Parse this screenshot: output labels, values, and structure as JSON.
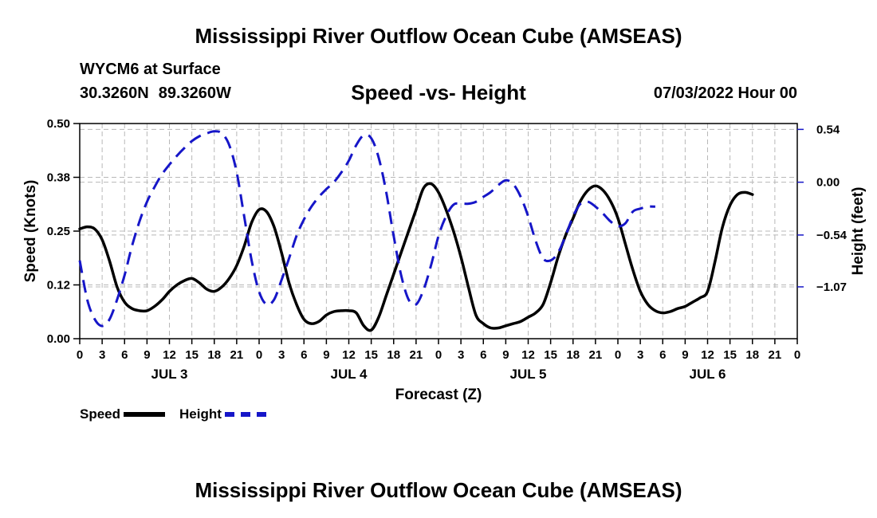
{
  "page": {
    "title_top": "Mississippi River Outflow Ocean Cube (AMSEAS)",
    "title_bottom": "Mississippi River Outflow Ocean Cube (AMSEAS)",
    "station": "WYCM6 at Surface",
    "lat": "30.3260N",
    "lon": "89.3260W",
    "subtitle": "Speed -vs- Height",
    "datetime": "07/03/2022 Hour 00"
  },
  "legend": {
    "speed_label": "Speed",
    "height_label": "Height"
  },
  "chart_data": {
    "type": "line",
    "title": "Speed -vs- Height",
    "xlabel": "Forecast (Z)",
    "ylabel_left": "Speed (Knots)",
    "ylabel_right": "Height (feet)",
    "x_range": [
      0,
      96
    ],
    "x_unit": "hours from 07/03/2022 00Z",
    "x_tick_labels": [
      "0",
      "3",
      "6",
      "9",
      "12",
      "15",
      "18",
      "21",
      "0",
      "3",
      "6",
      "9",
      "12",
      "15",
      "18",
      "21",
      "0",
      "3",
      "6",
      "9",
      "12",
      "15",
      "18",
      "21",
      "0",
      "3",
      "6",
      "9",
      "12",
      "15",
      "18",
      "21",
      "0"
    ],
    "day_labels": [
      {
        "label": "JUL 3",
        "hour": 12
      },
      {
        "label": "JUL 4",
        "hour": 36
      },
      {
        "label": "JUL 5",
        "hour": 60
      },
      {
        "label": "JUL 6",
        "hour": 84
      }
    ],
    "ylim_left": [
      0,
      0.5
    ],
    "yticks_left": [
      {
        "value": 0.0,
        "label": "0.00"
      },
      {
        "value": 0.125,
        "label": "0.12"
      },
      {
        "value": 0.25,
        "label": "0.25"
      },
      {
        "value": 0.375,
        "label": "0.38"
      },
      {
        "value": 0.5,
        "label": "0.50"
      }
    ],
    "ylim_right": [
      -1.6,
      0.6
    ],
    "yticks_right": [
      {
        "value": 0.54,
        "label": "0.54"
      },
      {
        "value": 0.0,
        "label": "0.00"
      },
      {
        "value": -0.54,
        "label": "−0.54"
      },
      {
        "value": -1.07,
        "label": "−1.07"
      }
    ],
    "grid": true,
    "series": [
      {
        "name": "Speed",
        "axis": "left",
        "color": "#000000",
        "style": "solid",
        "points": [
          [
            0,
            0.255
          ],
          [
            1,
            0.26
          ],
          [
            2,
            0.255
          ],
          [
            3,
            0.23
          ],
          [
            4,
            0.18
          ],
          [
            5,
            0.12
          ],
          [
            6,
            0.085
          ],
          [
            7,
            0.07
          ],
          [
            8,
            0.065
          ],
          [
            9,
            0.065
          ],
          [
            10,
            0.075
          ],
          [
            11,
            0.09
          ],
          [
            12,
            0.11
          ],
          [
            13,
            0.125
          ],
          [
            14,
            0.135
          ],
          [
            15,
            0.14
          ],
          [
            16,
            0.13
          ],
          [
            17,
            0.115
          ],
          [
            18,
            0.11
          ],
          [
            19,
            0.12
          ],
          [
            20,
            0.14
          ],
          [
            21,
            0.17
          ],
          [
            22,
            0.215
          ],
          [
            23,
            0.27
          ],
          [
            24,
            0.3
          ],
          [
            25,
            0.295
          ],
          [
            26,
            0.26
          ],
          [
            27,
            0.2
          ],
          [
            28,
            0.13
          ],
          [
            29,
            0.08
          ],
          [
            30,
            0.045
          ],
          [
            31,
            0.035
          ],
          [
            32,
            0.04
          ],
          [
            33,
            0.055
          ],
          [
            34,
            0.063
          ],
          [
            35,
            0.065
          ],
          [
            36,
            0.065
          ],
          [
            37,
            0.06
          ],
          [
            38,
            0.03
          ],
          [
            39,
            0.02
          ],
          [
            40,
            0.05
          ],
          [
            41,
            0.1
          ],
          [
            42,
            0.15
          ],
          [
            43,
            0.2
          ],
          [
            44,
            0.25
          ],
          [
            45,
            0.3
          ],
          [
            46,
            0.35
          ],
          [
            47,
            0.36
          ],
          [
            48,
            0.34
          ],
          [
            49,
            0.3
          ],
          [
            50,
            0.25
          ],
          [
            51,
            0.19
          ],
          [
            52,
            0.12
          ],
          [
            53,
            0.055
          ],
          [
            54,
            0.035
          ],
          [
            55,
            0.025
          ],
          [
            56,
            0.025
          ],
          [
            57,
            0.03
          ],
          [
            58,
            0.035
          ],
          [
            59,
            0.04
          ],
          [
            60,
            0.05
          ],
          [
            61,
            0.06
          ],
          [
            62,
            0.08
          ],
          [
            63,
            0.13
          ],
          [
            64,
            0.19
          ],
          [
            65,
            0.24
          ],
          [
            66,
            0.28
          ],
          [
            67,
            0.32
          ],
          [
            68,
            0.345
          ],
          [
            69,
            0.355
          ],
          [
            70,
            0.345
          ],
          [
            71,
            0.32
          ],
          [
            72,
            0.28
          ],
          [
            73,
            0.22
          ],
          [
            74,
            0.16
          ],
          [
            75,
            0.11
          ],
          [
            76,
            0.08
          ],
          [
            77,
            0.065
          ],
          [
            78,
            0.06
          ],
          [
            79,
            0.063
          ],
          [
            80,
            0.07
          ],
          [
            81,
            0.075
          ],
          [
            82,
            0.085
          ],
          [
            83,
            0.095
          ],
          [
            84,
            0.11
          ],
          [
            85,
            0.18
          ],
          [
            86,
            0.26
          ],
          [
            87,
            0.31
          ],
          [
            88,
            0.335
          ],
          [
            89,
            0.34
          ],
          [
            90,
            0.335
          ]
        ]
      },
      {
        "name": "Height",
        "axis": "right",
        "color": "#1616c8",
        "style": "dashed",
        "points": [
          [
            0,
            -0.8
          ],
          [
            1,
            -1.2
          ],
          [
            2,
            -1.4
          ],
          [
            3,
            -1.47
          ],
          [
            4,
            -1.4
          ],
          [
            5,
            -1.2
          ],
          [
            6,
            -0.95
          ],
          [
            7,
            -0.65
          ],
          [
            8,
            -0.4
          ],
          [
            9,
            -0.2
          ],
          [
            10,
            -0.05
          ],
          [
            11,
            0.08
          ],
          [
            12,
            0.18
          ],
          [
            13,
            0.27
          ],
          [
            14,
            0.35
          ],
          [
            15,
            0.42
          ],
          [
            16,
            0.47
          ],
          [
            17,
            0.5
          ],
          [
            18,
            0.52
          ],
          [
            19,
            0.5
          ],
          [
            20,
            0.38
          ],
          [
            21,
            0.1
          ],
          [
            22,
            -0.35
          ],
          [
            23,
            -0.8
          ],
          [
            24,
            -1.12
          ],
          [
            25,
            -1.25
          ],
          [
            26,
            -1.2
          ],
          [
            27,
            -1.0
          ],
          [
            28,
            -0.78
          ],
          [
            29,
            -0.55
          ],
          [
            30,
            -0.38
          ],
          [
            31,
            -0.25
          ],
          [
            32,
            -0.15
          ],
          [
            33,
            -0.07
          ],
          [
            34,
            0.0
          ],
          [
            35,
            0.1
          ],
          [
            36,
            0.22
          ],
          [
            37,
            0.38
          ],
          [
            38,
            0.48
          ],
          [
            39,
            0.45
          ],
          [
            40,
            0.25
          ],
          [
            41,
            -0.1
          ],
          [
            42,
            -0.55
          ],
          [
            43,
            -0.95
          ],
          [
            44,
            -1.2
          ],
          [
            45,
            -1.25
          ],
          [
            46,
            -1.1
          ],
          [
            47,
            -0.85
          ],
          [
            48,
            -0.55
          ],
          [
            49,
            -0.35
          ],
          [
            50,
            -0.23
          ],
          [
            51,
            -0.22
          ],
          [
            52,
            -0.22
          ],
          [
            53,
            -0.2
          ],
          [
            54,
            -0.15
          ],
          [
            55,
            -0.1
          ],
          [
            56,
            -0.03
          ],
          [
            57,
            0.02
          ],
          [
            58,
            -0.02
          ],
          [
            59,
            -0.15
          ],
          [
            60,
            -0.35
          ],
          [
            61,
            -0.6
          ],
          [
            62,
            -0.78
          ],
          [
            63,
            -0.8
          ],
          [
            64,
            -0.72
          ],
          [
            65,
            -0.55
          ],
          [
            66,
            -0.35
          ],
          [
            67,
            -0.22
          ],
          [
            68,
            -0.2
          ],
          [
            69,
            -0.25
          ],
          [
            70,
            -0.32
          ],
          [
            71,
            -0.4
          ],
          [
            72,
            -0.45
          ],
          [
            73,
            -0.42
          ],
          [
            74,
            -0.3
          ],
          [
            75,
            -0.27
          ],
          [
            76,
            -0.25
          ],
          [
            77,
            -0.25
          ]
        ]
      }
    ]
  }
}
